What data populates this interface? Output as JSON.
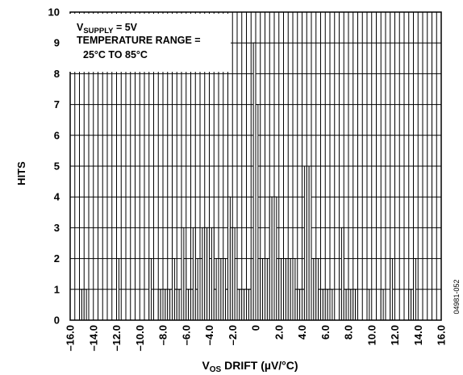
{
  "chart_data": {
    "type": "bar",
    "title": "",
    "xlabel_main": "V",
    "xlabel_sub": "OS",
    "xlabel_rest": " DRIFT (µV/°C)",
    "ylabel": "HITS",
    "figure_id": "04981-052",
    "annotation": {
      "line1_main": "V",
      "line1_sub": "SUPPLY",
      "line1_rest": " = 5V",
      "line2": "TEMPERATURE RANGE =",
      "line3": "25°C TO 85°C"
    },
    "xlim": [
      -16.0,
      16.0
    ],
    "ylim": [
      0,
      10
    ],
    "grid": true,
    "xticks": [
      "–16.0",
      "–14.0",
      "–12.0",
      "–10.0",
      "–8.0",
      "–6.0",
      "–4.0",
      "–2.0",
      "0",
      "2.0",
      "4.0",
      "6.0",
      "8.0",
      "10.0",
      "12.0",
      "14.0",
      "16.0"
    ],
    "yticks": [
      "0",
      "1",
      "2",
      "3",
      "4",
      "5",
      "6",
      "7",
      "8",
      "9",
      "10"
    ],
    "bin_width": 0.2,
    "bins": [
      {
        "x": -15.1,
        "y": 1
      },
      {
        "x": -14.9,
        "y": 1
      },
      {
        "x": -14.7,
        "y": 1
      },
      {
        "x": -11.9,
        "y": 2
      },
      {
        "x": -9.1,
        "y": 2
      },
      {
        "x": -8.3,
        "y": 1
      },
      {
        "x": -8.1,
        "y": 1
      },
      {
        "x": -7.9,
        "y": 1
      },
      {
        "x": -7.7,
        "y": 1
      },
      {
        "x": -7.5,
        "y": 1
      },
      {
        "x": -7.3,
        "y": 1
      },
      {
        "x": -7.1,
        "y": 2
      },
      {
        "x": -6.9,
        "y": 1
      },
      {
        "x": -6.7,
        "y": 1
      },
      {
        "x": -6.5,
        "y": 1
      },
      {
        "x": -6.3,
        "y": 3
      },
      {
        "x": -6.1,
        "y": 2
      },
      {
        "x": -5.9,
        "y": 1
      },
      {
        "x": -5.7,
        "y": 1
      },
      {
        "x": -5.5,
        "y": 1
      },
      {
        "x": -5.3,
        "y": 3
      },
      {
        "x": -5.1,
        "y": 1
      },
      {
        "x": -4.9,
        "y": 2
      },
      {
        "x": -4.7,
        "y": 2
      },
      {
        "x": -4.5,
        "y": 3
      },
      {
        "x": -4.3,
        "y": 3
      },
      {
        "x": -4.1,
        "y": 3
      },
      {
        "x": -3.9,
        "y": 2
      },
      {
        "x": -3.7,
        "y": 3
      },
      {
        "x": -3.5,
        "y": 1
      },
      {
        "x": -3.3,
        "y": 2
      },
      {
        "x": -3.1,
        "y": 2
      },
      {
        "x": -2.9,
        "y": 2
      },
      {
        "x": -2.7,
        "y": 2
      },
      {
        "x": -2.5,
        "y": 1
      },
      {
        "x": -2.3,
        "y": 4
      },
      {
        "x": -2.1,
        "y": 3
      },
      {
        "x": -1.9,
        "y": 3
      },
      {
        "x": -1.7,
        "y": 2
      },
      {
        "x": -1.5,
        "y": 1
      },
      {
        "x": -1.3,
        "y": 1
      },
      {
        "x": -1.1,
        "y": 1
      },
      {
        "x": -0.9,
        "y": 1
      },
      {
        "x": -0.7,
        "y": 1
      },
      {
        "x": -0.5,
        "y": 1
      },
      {
        "x": -0.3,
        "y": 2
      },
      {
        "x": -0.1,
        "y": 9
      },
      {
        "x": 0.1,
        "y": 7
      },
      {
        "x": 0.3,
        "y": 2
      },
      {
        "x": 0.5,
        "y": 2
      },
      {
        "x": 0.7,
        "y": 2
      },
      {
        "x": 0.9,
        "y": 2
      },
      {
        "x": 1.1,
        "y": 2
      },
      {
        "x": 1.3,
        "y": 4
      },
      {
        "x": 1.5,
        "y": 4
      },
      {
        "x": 1.7,
        "y": 4
      },
      {
        "x": 1.9,
        "y": 2
      },
      {
        "x": 2.1,
        "y": 2
      },
      {
        "x": 2.3,
        "y": 2
      },
      {
        "x": 2.5,
        "y": 2
      },
      {
        "x": 2.7,
        "y": 2
      },
      {
        "x": 2.9,
        "y": 2
      },
      {
        "x": 3.1,
        "y": 2
      },
      {
        "x": 3.3,
        "y": 2
      },
      {
        "x": 3.5,
        "y": 1
      },
      {
        "x": 3.7,
        "y": 1
      },
      {
        "x": 3.9,
        "y": 1
      },
      {
        "x": 4.1,
        "y": 1
      },
      {
        "x": 4.3,
        "y": 5
      },
      {
        "x": 4.5,
        "y": 5
      },
      {
        "x": 4.7,
        "y": 5
      },
      {
        "x": 4.9,
        "y": 2
      },
      {
        "x": 5.1,
        "y": 2
      },
      {
        "x": 5.3,
        "y": 2
      },
      {
        "x": 5.5,
        "y": 1
      },
      {
        "x": 5.7,
        "y": 1
      },
      {
        "x": 5.9,
        "y": 1
      },
      {
        "x": 6.1,
        "y": 1
      },
      {
        "x": 6.3,
        "y": 1
      },
      {
        "x": 6.5,
        "y": 1
      },
      {
        "x": 7.3,
        "y": 1
      },
      {
        "x": 7.5,
        "y": 3
      },
      {
        "x": 7.7,
        "y": 1
      },
      {
        "x": 7.9,
        "y": 1
      },
      {
        "x": 8.1,
        "y": 1
      },
      {
        "x": 8.3,
        "y": 1
      },
      {
        "x": 8.5,
        "y": 1
      },
      {
        "x": 8.7,
        "y": 1
      },
      {
        "x": 9.7,
        "y": 1
      },
      {
        "x": 10.9,
        "y": 1
      },
      {
        "x": 11.7,
        "y": 2
      },
      {
        "x": 13.3,
        "y": 1
      },
      {
        "x": 13.5,
        "y": 1
      },
      {
        "x": 13.7,
        "y": 2
      }
    ]
  }
}
